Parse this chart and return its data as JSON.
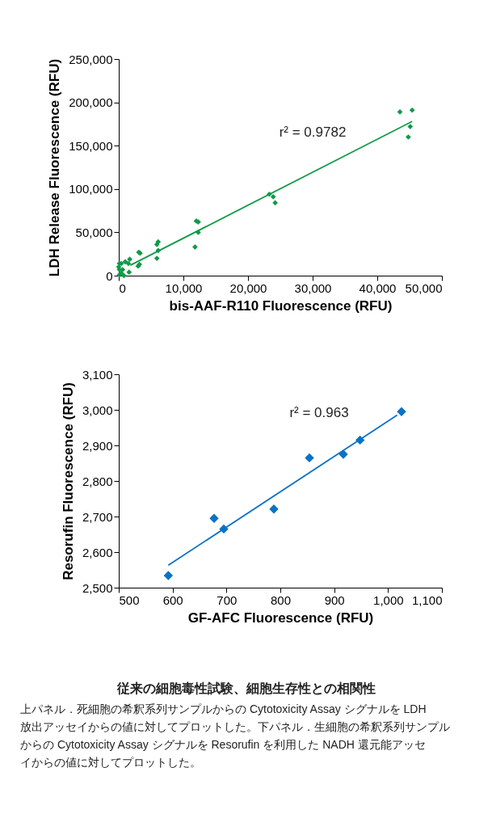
{
  "chart_data": [
    {
      "type": "scatter",
      "xlabel": "bis-AAF-R110 Fluorescence (RFU)",
      "ylabel": "LDH Release Fluorescence (RFU)",
      "xlim": [
        0,
        50000
      ],
      "xticks": [
        0,
        {
          "value": 10000,
          "label": "10,000"
        },
        {
          "value": 20000,
          "label": "20,000"
        },
        {
          "value": 30000,
          "label": "30,000"
        },
        {
          "value": 40000,
          "label": "40,000"
        },
        {
          "value": 50000,
          "label": "50,000"
        }
      ],
      "ylim": [
        0,
        250000
      ],
      "yticks": [
        0,
        {
          "value": 50000,
          "label": "50,000"
        },
        {
          "value": 100000,
          "label": "100,000"
        },
        {
          "value": 150000,
          "label": "150,000"
        },
        {
          "value": 200000,
          "label": "200,000"
        },
        {
          "value": 250000,
          "label": "250,000"
        }
      ],
      "grid": false,
      "annotations": [
        "r² = 0.9782"
      ],
      "series": [
        {
          "type": "scatter",
          "marker": "diamond",
          "color": "#109a48",
          "x": [
            43500,
            45400,
            45100,
            44800,
            23300,
            23900,
            24200,
            12000,
            12300,
            12300,
            11800,
            6100,
            5900,
            6100,
            5900,
            3100,
            3300,
            3000,
            3200,
            1700,
            1600,
            1500,
            1000,
            400,
            100,
            100,
            100,
            600,
            800,
            400,
            0
          ],
          "values": [
            189000,
            191000,
            172000,
            160000,
            94000,
            91000,
            84000,
            63000,
            62000,
            50000,
            33000,
            39000,
            36000,
            29000,
            20000,
            27000,
            26000,
            11000,
            13000,
            19000,
            4000,
            14000,
            16000,
            14000,
            14000,
            7000,
            1000,
            7000,
            0,
            3000,
            10000
          ]
        },
        {
          "type": "line",
          "line_style": "solid",
          "color": "#109a48",
          "x": [
            1800,
            45400
          ],
          "values": [
            12000,
            178000
          ]
        }
      ]
    },
    {
      "type": "scatter",
      "xlabel": "GF-AFC Fluorescence (RFU)",
      "ylabel": "Resorufin Fluorescence (RFU)",
      "xlim": [
        500,
        1100
      ],
      "xticks": [
        500,
        600,
        700,
        800,
        900,
        {
          "value": 1000,
          "label": "1,000"
        },
        {
          "value": 1100,
          "label": "1,100"
        }
      ],
      "ylim": [
        2500,
        3100
      ],
      "yticks": [
        {
          "value": 2500,
          "label": "2,500"
        },
        {
          "value": 2600,
          "label": "2,600"
        },
        {
          "value": 2700,
          "label": "2,700"
        },
        {
          "value": 2800,
          "label": "2,800"
        },
        {
          "value": 2900,
          "label": "2,900"
        },
        {
          "value": 3000,
          "label": "3,000"
        },
        {
          "value": 3100,
          "label": "3,100"
        }
      ],
      "grid": false,
      "annotations": [
        "r² = 0.963"
      ],
      "series": [
        {
          "type": "scatter",
          "marker": "diamond",
          "color": "#0a72c4",
          "x": [
            592,
            677,
            695,
            788,
            854,
            917,
            948,
            1025
          ],
          "values": [
            2534,
            2695,
            2665,
            2721,
            2865,
            2875,
            2915,
            2995
          ]
        },
        {
          "type": "line",
          "line_style": "solid",
          "color": "#0a72c4",
          "x": [
            592,
            1017
          ],
          "values": [
            2563,
            2985
          ]
        }
      ]
    },
    {
      "type": "other",
      "title": "従来の細胞毒性試験、細胞生存性との相関性",
      "annotations": [
        "上パネル．死細胞の希釈系列サンプルからの Cytotoxicity Assay シグナルを LDH 放出アッセイからの値に対してプロットした。下パネル．生細胞の希釈系列サンプルからの Cytotoxicity Assay シグナルを Resorufin を利用した NADH 還元能アッセイからの値に対してプロットした。"
      ]
    }
  ]
}
